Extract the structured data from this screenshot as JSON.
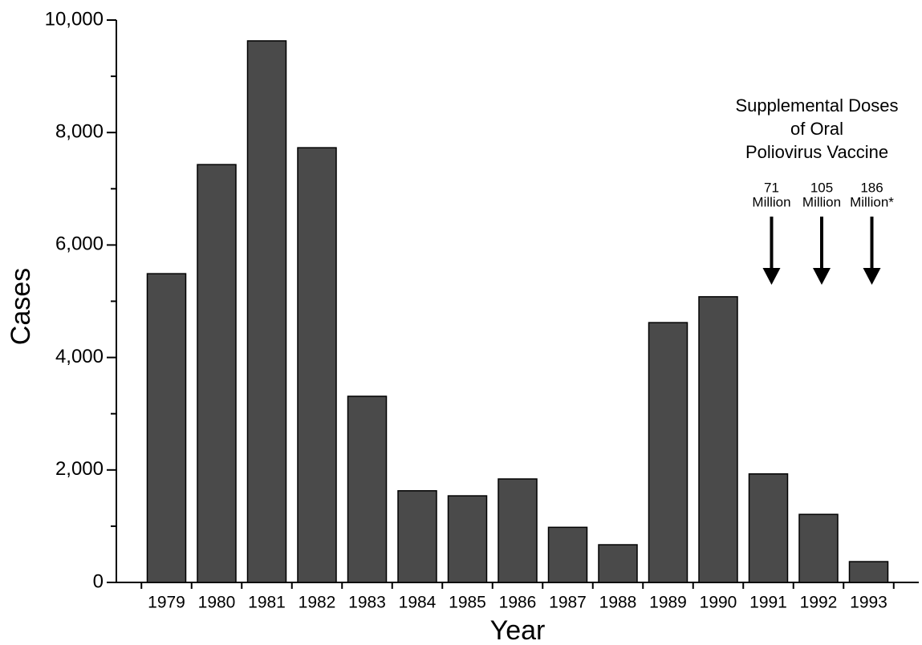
{
  "chart_data": {
    "type": "bar",
    "x_label": "Year",
    "y_label": "Cases",
    "categories": [
      "1979",
      "1980",
      "1981",
      "1982",
      "1983",
      "1984",
      "1985",
      "1986",
      "1987",
      "1988",
      "1989",
      "1990",
      "1991",
      "1992",
      "1993"
    ],
    "values": [
      5490,
      7430,
      9630,
      7730,
      3310,
      1630,
      1540,
      1840,
      980,
      670,
      4620,
      5080,
      1930,
      1210,
      370
    ],
    "color": "#4a4a4a",
    "ylim": [
      0,
      10000
    ],
    "yticks": [
      0,
      {
        "value": 2000,
        "label": "2,000"
      },
      {
        "value": 4000,
        "label": "4,000"
      },
      {
        "value": 6000,
        "label": "6,000"
      },
      {
        "value": 8000,
        "label": "8,000"
      },
      {
        "value": 10000,
        "label": "10,000"
      }
    ],
    "yminorticks": [
      1000,
      3000,
      5000,
      7000,
      9000
    ],
    "annotation": [
      "Supplemental Doses",
      "of Oral",
      "Poliovirus Vaccine"
    ],
    "arrows": [
      {
        "category": "1991",
        "label": [
          "71",
          "Million"
        ]
      },
      {
        "category": "1992",
        "label": [
          "105",
          "Million"
        ]
      },
      {
        "category": "1993",
        "label": [
          "186",
          "Million*"
        ]
      }
    ]
  }
}
